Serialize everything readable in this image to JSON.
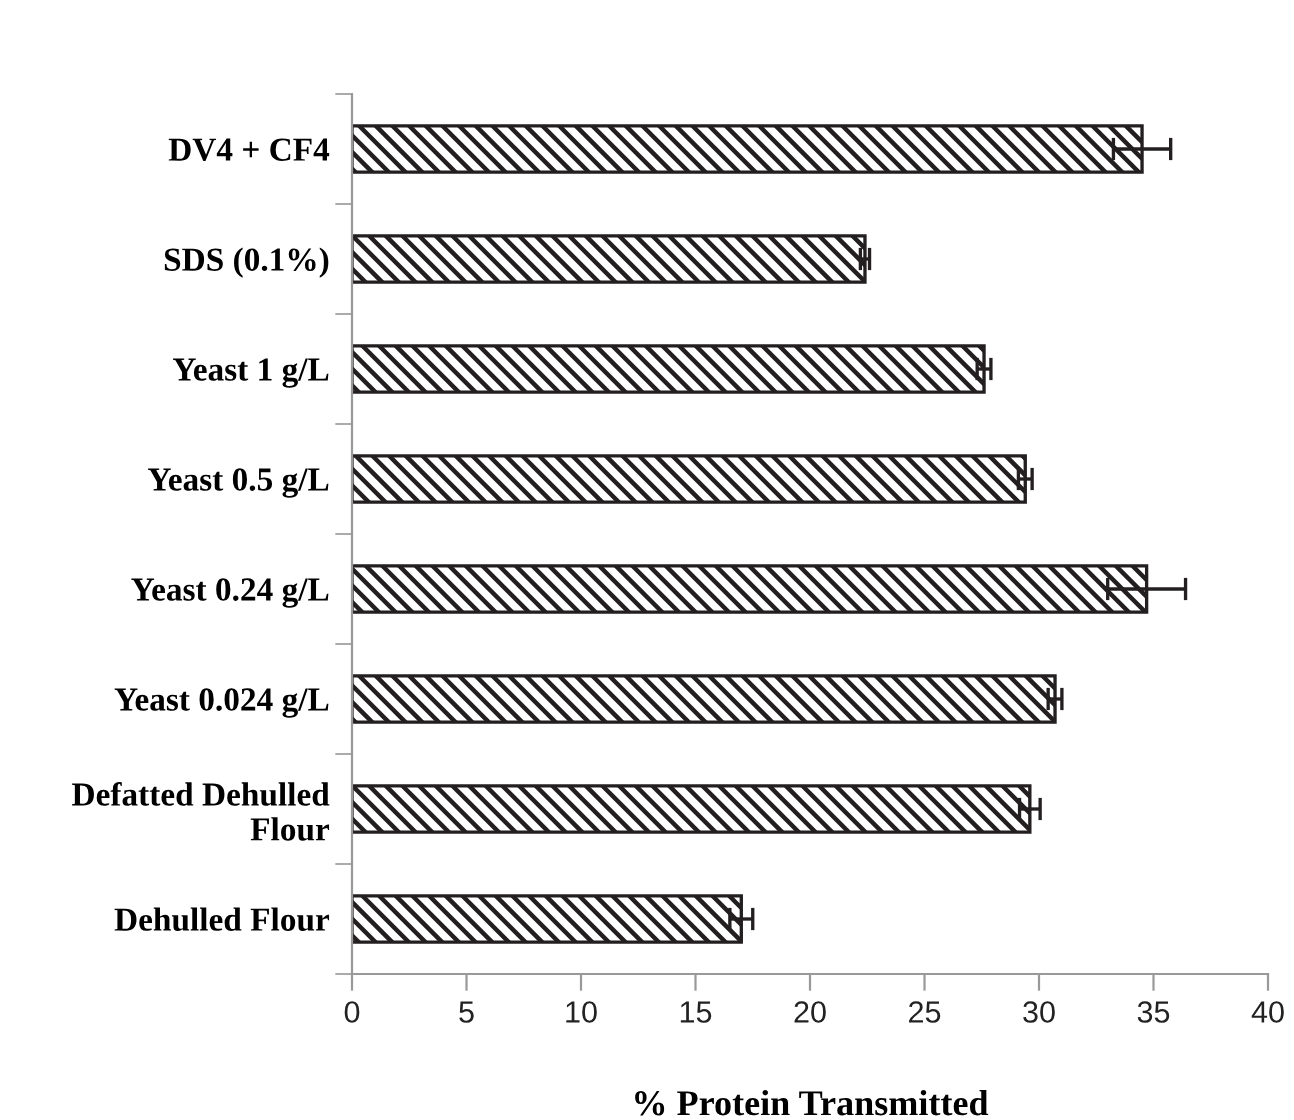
{
  "chart_data": {
    "type": "bar",
    "orientation": "horizontal",
    "xlabel": "% Protein Transmitted",
    "categories": [
      "DV4 + CF4",
      "SDS (0.1%)",
      "Yeast 1 g/L",
      "Yeast 0.5 g/L",
      "Yeast 0.24 g/L",
      "Yeast 0.024 g/L",
      "Defatted Dehulled\nFlour",
      "Dehulled Flour"
    ],
    "values": [
      34.5,
      22.4,
      27.6,
      29.4,
      34.7,
      30.7,
      29.6,
      17.0
    ],
    "errors": [
      1.25,
      0.2,
      0.3,
      0.3,
      1.7,
      0.3,
      0.45,
      0.5
    ],
    "color": "#231f20",
    "xlim": [
      0,
      40
    ],
    "xticks": [
      0,
      5,
      10,
      15,
      20,
      25,
      30,
      35,
      40
    ],
    "grid": false,
    "legend": false
  }
}
